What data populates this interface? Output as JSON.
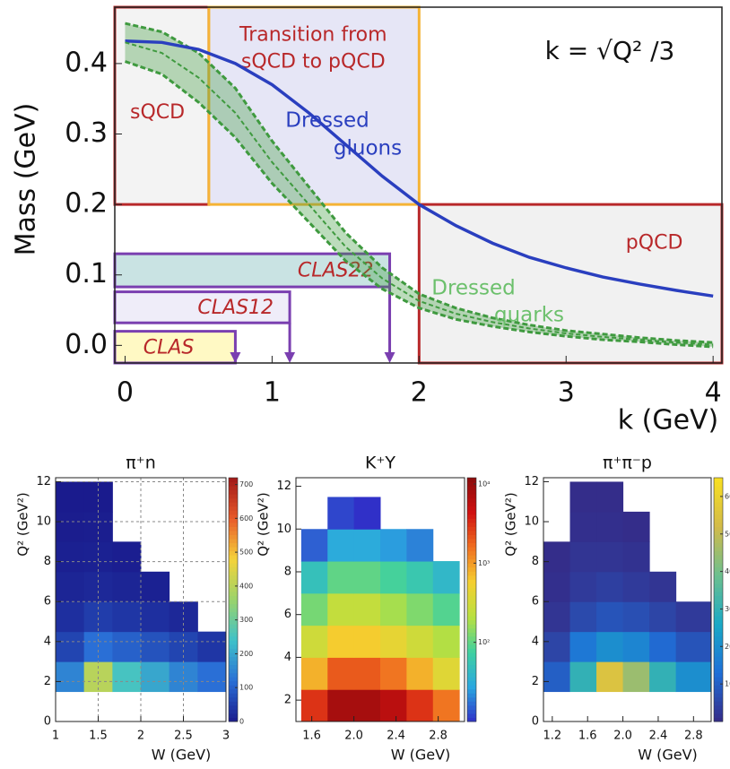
{
  "chart_data": [
    {
      "type": "line",
      "xlabel": "k (GeV)",
      "ylabel": "Mass (GeV)",
      "formula": "k = √Q² /3",
      "xlim": [
        -0.07,
        4.06
      ],
      "xticks": [
        0,
        1,
        2,
        3,
        4
      ],
      "ylim": [
        -0.025,
        0.48
      ],
      "yticks": [
        {
          "value": 0,
          "label": "0.0"
        },
        0.1,
        0.2,
        0.3,
        0.4
      ],
      "x": [
        0,
        0.25,
        0.5,
        0.75,
        1,
        1.25,
        1.5,
        1.75,
        2,
        2.25,
        2.5,
        2.75,
        3,
        3.25,
        3.5,
        3.75,
        4
      ],
      "series": [
        {
          "color": "#2a3fbf",
          "values": [
            0.432,
            0.43,
            0.42,
            0.4,
            0.37,
            0.33,
            0.285,
            0.24,
            0.2,
            0.17,
            0.145,
            0.125,
            0.11,
            0.097,
            0.087,
            0.078,
            0.07
          ]
        },
        {
          "color": "#3f9a3f",
          "values": [
            0.43,
            0.415,
            0.38,
            0.33,
            0.26,
            0.2,
            0.14,
            0.095,
            0.063,
            0.045,
            0.033,
            0.024,
            0.017,
            0.012,
            0.008,
            0.004,
            0.001
          ],
          "errors": [
            0.027,
            0.03,
            0.035,
            0.035,
            0.03,
            0.025,
            0.02,
            0.015,
            0.01,
            0.008,
            0.006,
            0.005,
            0.004,
            0.004,
            0.003,
            0.003,
            0.003
          ]
        }
      ],
      "annotations": [
        {
          "lines": [
            "Dressed",
            "gluons"
          ],
          "color": "#2a3fbf"
        },
        {
          "lines": [
            "Dressed",
            "quarks"
          ],
          "color": "#6cc06c"
        }
      ],
      "regions": [
        {
          "lines": [
            "sQCD"
          ],
          "x": [
            -0.07,
            0.57
          ],
          "y": [
            0.2,
            0.48
          ],
          "fill": "#f3f3f3",
          "stroke": "#b8282a"
        },
        {
          "lines": [
            "Transition from",
            "sQCD to pQCD"
          ],
          "x": [
            0.57,
            2.0
          ],
          "y": [
            0.2,
            0.48
          ],
          "fill": "#e6e6f6",
          "stroke": "#f5b335"
        },
        {
          "lines": [
            "pQCD"
          ],
          "x": [
            2.0,
            4.06
          ],
          "y": [
            -0.025,
            0.2
          ],
          "fill": "#f1f1f1",
          "stroke": "#b8282a"
        }
      ],
      "experiments": [
        {
          "label": "CLAS22",
          "kmax": 1.8,
          "y": [
            0.083,
            0.13
          ],
          "fill": "#c9e3e3"
        },
        {
          "label": "CLAS12",
          "kmax": 1.12,
          "y": [
            0.032,
            0.076
          ],
          "fill": "#efedf9"
        },
        {
          "label": "CLAS",
          "kmax": 0.75,
          "y": [
            -0.025,
            0.02
          ],
          "fill": "#fff9c4"
        }
      ]
    },
    {
      "type": "heatmap",
      "title": "π⁺n",
      "xlabel": "W (GeV)",
      "ylabel": "Q² (GeV²)",
      "grid": true,
      "xlim": [
        1,
        3
      ],
      "xticks": [
        1,
        1.5,
        2,
        2.5,
        3
      ],
      "ylim": [
        0,
        12.2
      ],
      "yticks": [
        0,
        2,
        4,
        6,
        8,
        10,
        12
      ],
      "xbins": [
        1,
        1.333,
        1.667,
        2,
        2.333,
        2.667,
        3
      ],
      "ybins": [
        0,
        1.5,
        3,
        4.5,
        6,
        7.5,
        9,
        10.5,
        12
      ],
      "z": [
        [
          null,
          null,
          null,
          null,
          null,
          null
        ],
        [
          150,
          400,
          250,
          200,
          150,
          120
        ],
        [
          60,
          120,
          100,
          80,
          60,
          40
        ],
        [
          30,
          50,
          40,
          30,
          20,
          null
        ],
        [
          15,
          20,
          15,
          10,
          null,
          null
        ],
        [
          8,
          10,
          6,
          null,
          null,
          null
        ],
        [
          4,
          5,
          null,
          null,
          null,
          null
        ],
        [
          2,
          2,
          null,
          null,
          null,
          null
        ]
      ],
      "clim": [
        0,
        720
      ],
      "cticks": [
        0,
        100,
        200,
        300,
        400,
        500,
        600,
        700
      ],
      "colormap": [
        "#1a1a8c",
        "#2a6fd6",
        "#3fc1c9",
        "#9ad36b",
        "#f5d33a",
        "#e85a2a",
        "#a01818"
      ]
    },
    {
      "type": "heatmap",
      "title": "K⁺Y",
      "xlabel": "W (GeV)",
      "ylabel": "Q² (GeV²)",
      "grid": false,
      "xlim": [
        1.45,
        3.05
      ],
      "xticks": [
        1.6,
        {
          "value": 2,
          "label": "2.0"
        },
        2.4,
        2.8
      ],
      "ylim": [
        1,
        12.4
      ],
      "yticks": [
        2,
        4,
        6,
        8,
        10,
        12
      ],
      "xbins": [
        1.5,
        1.75,
        2,
        2.25,
        2.5,
        2.75,
        3
      ],
      "ybins": [
        1,
        2.5,
        4,
        5.5,
        7,
        8.5,
        10,
        11.5
      ],
      "z": [
        [
          3000,
          8000,
          8000,
          6000,
          3000,
          1500
        ],
        [
          800,
          2000,
          2000,
          1500,
          800,
          400
        ],
        [
          300,
          600,
          600,
          450,
          300,
          200
        ],
        [
          120,
          250,
          250,
          180,
          130,
          90
        ],
        [
          50,
          100,
          100,
          80,
          60,
          40
        ],
        [
          15,
          30,
          30,
          25,
          20,
          null
        ],
        [
          null,
          12,
          8,
          null,
          null,
          null
        ]
      ],
      "clim": [
        10,
        12000
      ],
      "zscale": "log",
      "cticks": [
        {
          "value": 100,
          "label": "10²"
        },
        {
          "value": 1000,
          "label": "10³"
        },
        {
          "value": 10000,
          "label": "10⁴"
        }
      ],
      "colormap": [
        "#3030c8",
        "#2aa8e0",
        "#3fd0a0",
        "#b8e040",
        "#f5d030",
        "#f07020",
        "#d01010",
        "#8a0c0c"
      ]
    },
    {
      "type": "heatmap",
      "title": "π⁺π⁻p",
      "xlabel": "W (GeV)",
      "ylabel": "Q² (GeV²)",
      "grid": false,
      "xlim": [
        1.1,
        3.0
      ],
      "xticks": [
        1.2,
        1.6,
        {
          "value": 2,
          "label": "2.0"
        },
        2.4,
        2.8
      ],
      "ylim": [
        0,
        12.2
      ],
      "yticks": [
        0,
        2,
        4,
        6,
        8,
        10,
        12
      ],
      "xbins": [
        1.1,
        1.4,
        1.7,
        2.0,
        2.3,
        2.6,
        3.0
      ],
      "ybins": [
        0,
        1.5,
        3,
        4.5,
        6,
        7.5,
        9,
        10.5,
        12
      ],
      "z": [
        [
          null,
          null,
          null,
          null,
          null,
          null
        ],
        [
          10,
          30,
          55,
          45,
          30,
          20
        ],
        [
          5,
          15,
          20,
          18,
          12,
          8
        ],
        [
          2,
          6,
          8,
          7,
          5,
          3
        ],
        [
          1,
          3,
          4,
          3,
          2,
          null
        ],
        [
          0.5,
          2,
          2,
          1.5,
          null,
          null
        ],
        [
          null,
          1,
          1,
          0.5,
          null,
          null
        ],
        [
          null,
          0.5,
          0.5,
          null,
          null,
          null
        ]
      ],
      "clim": [
        0,
        65
      ],
      "cticks": [
        10,
        20,
        30,
        40,
        50,
        60
      ],
      "colormap": [
        "#352a87",
        "#1f6fd8",
        "#1aa9c6",
        "#6cc08f",
        "#d2ba4a",
        "#f9e021"
      ]
    }
  ]
}
